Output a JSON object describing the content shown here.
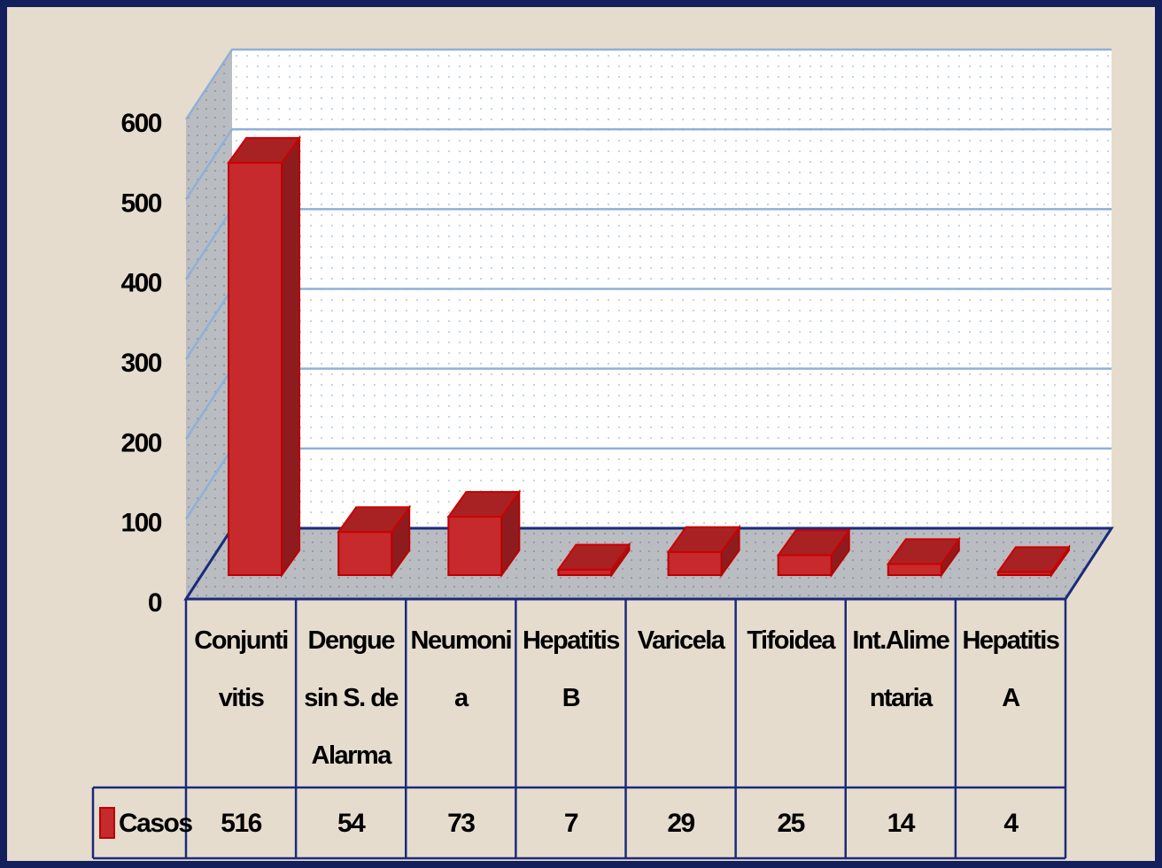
{
  "chart_data": {
    "type": "bar3d",
    "categories": [
      "Conjuntivitis",
      "Dengue sin S. de Alarma",
      "Neumonia",
      "Hepatitis B",
      "Varicela",
      "Tifoidea",
      "Int.Alimentaria",
      "Hepatitis A"
    ],
    "series": [
      {
        "name": "Casos",
        "color": "#c62a2c",
        "values": [
          516,
          54,
          73,
          7,
          29,
          25,
          14,
          4
        ]
      }
    ],
    "ylim": [
      0,
      600
    ],
    "yticks": [
      0,
      100,
      200,
      300,
      400,
      500,
      600
    ],
    "grid": true,
    "data_table": true
  }
}
